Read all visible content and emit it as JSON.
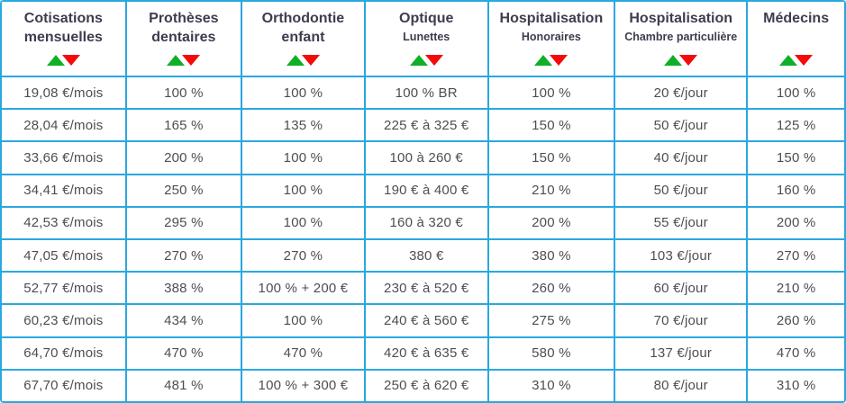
{
  "colors": {
    "border": "#29a8e0",
    "header_text": "#3e3c4e",
    "cell_text": "#4e4e52",
    "sort_up_green": "#10af28",
    "sort_down_red": "#f50a0a",
    "background": "#ffffff"
  },
  "table": {
    "columns": [
      {
        "title": "Cotisations mensuelles",
        "subtitle": ""
      },
      {
        "title": "Prothèses dentaires",
        "subtitle": ""
      },
      {
        "title": "Orthodontie enfant",
        "subtitle": ""
      },
      {
        "title": "Optique",
        "subtitle": "Lunettes"
      },
      {
        "title": "Hospitalisation",
        "subtitle": "Honoraires"
      },
      {
        "title": "Hospitalisation",
        "subtitle": "Chambre particulière"
      },
      {
        "title": "Médecins",
        "subtitle": ""
      }
    ],
    "sort_icons": {
      "ascending": "green-up-triangle",
      "descending": "red-down-triangle"
    },
    "rows": [
      [
        "19,08 €/mois",
        "100 %",
        "100 %",
        "100 % BR",
        "100 %",
        "20 €/jour",
        "100 %"
      ],
      [
        "28,04 €/mois",
        "165 %",
        "135 %",
        "225 € à 325 €",
        "150 %",
        "50 €/jour",
        "125 %"
      ],
      [
        "33,66 €/mois",
        "200 %",
        "100 %",
        "100 à 260 €",
        "150 %",
        "40 €/jour",
        "150 %"
      ],
      [
        "34,41 €/mois",
        "250 %",
        "100 %",
        "190 € à 400 €",
        "210 %",
        "50 €/jour",
        "160 %"
      ],
      [
        "42,53 €/mois",
        "295 %",
        "100 %",
        "160 à 320 €",
        "200 %",
        "55 €/jour",
        "200 %"
      ],
      [
        "47,05 €/mois",
        "270 %",
        "270 %",
        "380 €",
        "380 %",
        "103 €/jour",
        "270 %"
      ],
      [
        "52,77 €/mois",
        "388 %",
        "100 % + 200 €",
        "230 € à 520 €",
        "260 %",
        "60 €/jour",
        "210 %"
      ],
      [
        "60,23 €/mois",
        "434 %",
        "100 %",
        "240 € à 560 €",
        "275 %",
        "70 €/jour",
        "260 %"
      ],
      [
        "64,70 €/mois",
        "470 %",
        "470 %",
        "420 € à 635 €",
        "580 %",
        "137 €/jour",
        "470 %"
      ],
      [
        "67,70 €/mois",
        "481 %",
        "100 % + 300 €",
        "250 € à 620 €",
        "310 %",
        "80 €/jour",
        "310 %"
      ]
    ]
  }
}
